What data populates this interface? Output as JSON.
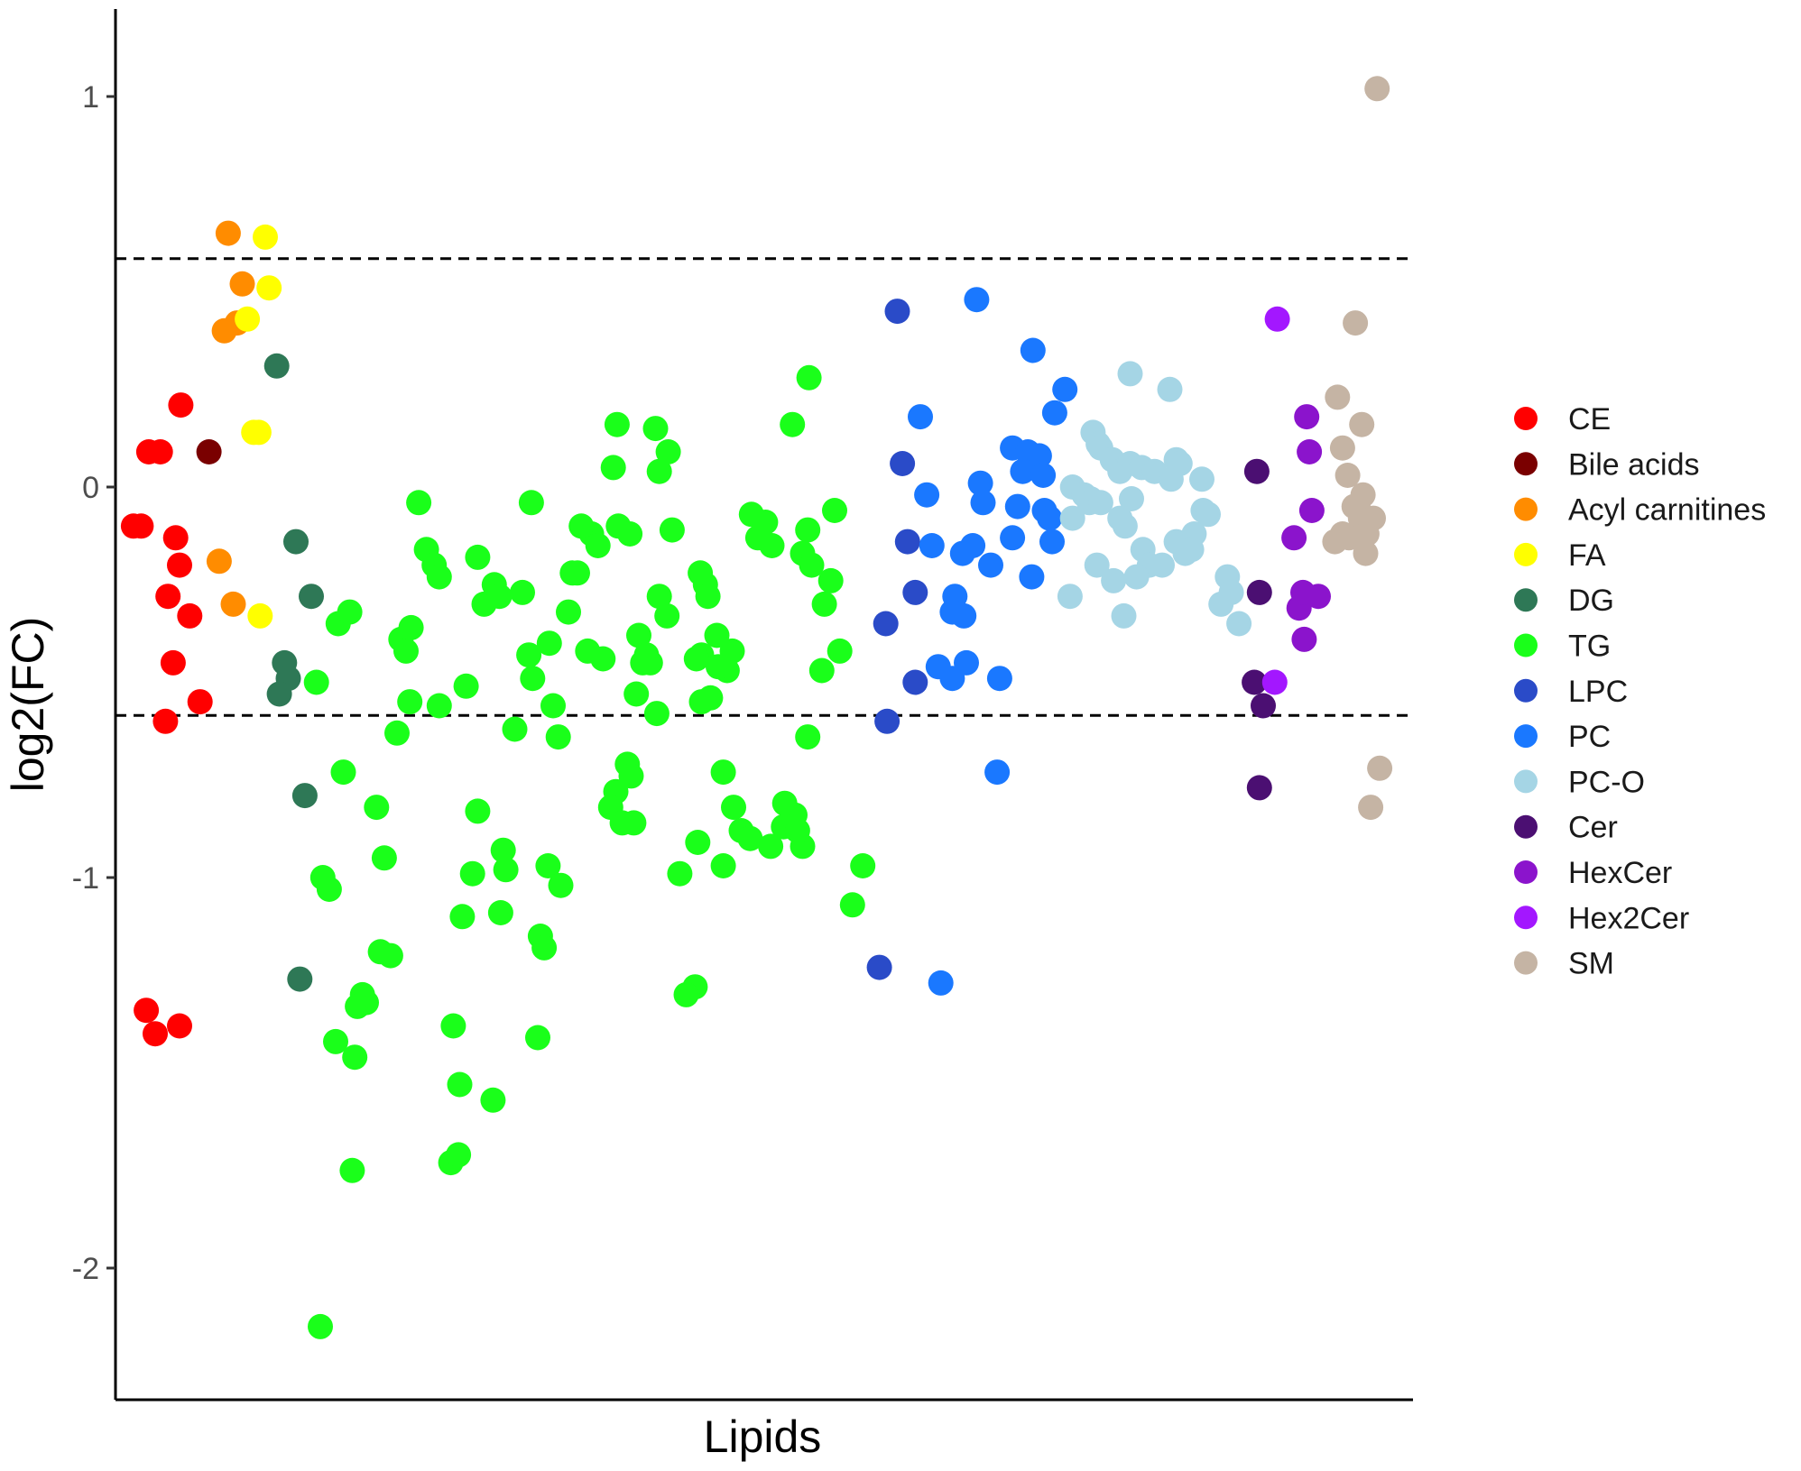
{
  "chart_data": {
    "type": "scatter",
    "title": "",
    "xlabel": "Lipids",
    "ylabel": "log2(FC)",
    "ylim": [
      -2.38,
      1.22
    ],
    "xlim": [
      0,
      100
    ],
    "y_ticks": [
      -2,
      -1,
      0,
      1
    ],
    "y_tick_labels": [
      "-2",
      "-1",
      "0",
      "1"
    ],
    "x_ticks": [],
    "grid": false,
    "legend_position": "right",
    "reference_lines": [
      {
        "y": 0.585,
        "style": "dashed"
      },
      {
        "y": -0.585,
        "style": "dashed"
      }
    ],
    "series": [
      {
        "name": "CE",
        "color": "#ff0000",
        "points": [
          [
            0.7,
            -0.1
          ],
          [
            1.3,
            -0.1
          ],
          [
            1.9,
            0.09
          ],
          [
            2.8,
            0.09
          ],
          [
            4.4,
            0.21
          ],
          [
            4,
            -0.13
          ],
          [
            4.3,
            -0.2
          ],
          [
            3.4,
            -0.28
          ],
          [
            5.1,
            -0.33
          ],
          [
            3.8,
            -0.45
          ],
          [
            5.9,
            -0.55
          ],
          [
            3.2,
            -0.6
          ],
          [
            1.7,
            -1.34
          ],
          [
            2.4,
            -1.4
          ],
          [
            4.3,
            -1.38
          ]
        ]
      },
      {
        "name": "Bile acids",
        "color": "#7a0000",
        "points": [
          [
            6.6,
            0.09
          ]
        ]
      },
      {
        "name": "Acyl carnitines",
        "color": "#ff8c00",
        "points": [
          [
            8.1,
            0.65
          ],
          [
            9.2,
            0.52
          ],
          [
            7.8,
            0.4
          ],
          [
            8.8,
            0.42
          ],
          [
            7.4,
            -0.19
          ],
          [
            8.5,
            -0.3
          ]
        ]
      },
      {
        "name": "FA",
        "color": "#ffff00",
        "points": [
          [
            11,
            0.64
          ],
          [
            11.3,
            0.51
          ],
          [
            9.6,
            0.43
          ],
          [
            10.1,
            0.14
          ],
          [
            10.5,
            0.14
          ],
          [
            10.6,
            -0.33
          ]
        ]
      },
      {
        "name": "DG",
        "color": "#2e7856",
        "points": [
          [
            11.9,
            0.31
          ],
          [
            13.4,
            -0.14
          ],
          [
            14.6,
            -0.28
          ],
          [
            12.5,
            -0.45
          ],
          [
            12.8,
            -0.49
          ],
          [
            12.1,
            -0.53
          ],
          [
            14.1,
            -0.79
          ],
          [
            13.7,
            -1.26
          ]
        ]
      },
      {
        "name": "TG",
        "color": "#1aff1a",
        "points": [
          [
            15,
            -0.5
          ],
          [
            16.7,
            -0.35
          ],
          [
            17.6,
            -0.32
          ],
          [
            17.1,
            -0.73
          ],
          [
            19.7,
            -0.82
          ],
          [
            20.3,
            -0.95
          ],
          [
            15.5,
            -1
          ],
          [
            16,
            -1.03
          ],
          [
            20,
            -1.19
          ],
          [
            20.8,
            -1.2
          ],
          [
            18.6,
            -1.3
          ],
          [
            18.2,
            -1.33
          ],
          [
            18.9,
            -1.32
          ],
          [
            16.5,
            -1.42
          ],
          [
            18,
            -1.46
          ],
          [
            17.8,
            -1.75
          ],
          [
            15.3,
            -2.15
          ],
          [
            23,
            -0.04
          ],
          [
            21.6,
            -0.39
          ],
          [
            22,
            -0.42
          ],
          [
            22.4,
            -0.36
          ],
          [
            23.6,
            -0.16
          ],
          [
            24.2,
            -0.2
          ],
          [
            24.6,
            -0.23
          ],
          [
            22.3,
            -0.55
          ],
          [
            24.6,
            -0.56
          ],
          [
            21.3,
            -0.63
          ],
          [
            27.6,
            -0.18
          ],
          [
            28.1,
            -0.3
          ],
          [
            28.9,
            -0.25
          ],
          [
            29.3,
            -0.28
          ],
          [
            26.7,
            -0.51
          ],
          [
            27.6,
            -0.83
          ],
          [
            29.6,
            -0.93
          ],
          [
            25.7,
            -1.38
          ],
          [
            26.4,
            -1.1
          ],
          [
            27.2,
            -0.99
          ],
          [
            29.8,
            -0.98
          ],
          [
            29.4,
            -1.09
          ],
          [
            26.2,
            -1.53
          ],
          [
            25.5,
            -1.73
          ],
          [
            26.1,
            -1.71
          ],
          [
            28.8,
            -1.57
          ],
          [
            31.8,
            -0.04
          ],
          [
            31.1,
            -0.27
          ],
          [
            31.6,
            -0.43
          ],
          [
            31.9,
            -0.49
          ],
          [
            30.5,
            -0.62
          ],
          [
            33.5,
            -0.56
          ],
          [
            33.9,
            -0.64
          ],
          [
            33.1,
            -0.97
          ],
          [
            34.1,
            -1.02
          ],
          [
            32.5,
            -1.15
          ],
          [
            32.8,
            -1.18
          ],
          [
            32.3,
            -1.41
          ],
          [
            33.2,
            -0.4
          ],
          [
            34.7,
            -0.32
          ],
          [
            35,
            -0.22
          ],
          [
            35.4,
            -0.22
          ],
          [
            36.5,
            -0.12
          ],
          [
            37,
            -0.15
          ],
          [
            35.7,
            -0.1
          ],
          [
            37.4,
            -0.44
          ],
          [
            36.2,
            -0.42
          ],
          [
            38.6,
            -0.1
          ],
          [
            39.5,
            -0.12
          ],
          [
            38.5,
            0.16
          ],
          [
            38.2,
            0.05
          ],
          [
            41.5,
            0.15
          ],
          [
            41.8,
            0.04
          ],
          [
            42.5,
            0.09
          ],
          [
            42.8,
            -0.11
          ],
          [
            40.2,
            -0.38
          ],
          [
            40.8,
            -0.43
          ],
          [
            40.5,
            -0.45
          ],
          [
            41.1,
            -0.45
          ],
          [
            41.8,
            -0.28
          ],
          [
            42.4,
            -0.33
          ],
          [
            40,
            -0.53
          ],
          [
            39.3,
            -0.71
          ],
          [
            39.6,
            -0.74
          ],
          [
            38.4,
            -0.78
          ],
          [
            38,
            -0.82
          ],
          [
            38.9,
            -0.86
          ],
          [
            39.8,
            -0.86
          ],
          [
            41.6,
            -0.58
          ],
          [
            45.1,
            -0.43
          ],
          [
            44.7,
            -0.44
          ],
          [
            45.1,
            -0.55
          ],
          [
            45.8,
            -0.54
          ],
          [
            46.3,
            -0.38
          ],
          [
            47.1,
            -0.47
          ],
          [
            47.5,
            -0.42
          ],
          [
            45,
            -0.22
          ],
          [
            45.4,
            -0.25
          ],
          [
            45.6,
            -0.28
          ],
          [
            46.4,
            -0.46
          ],
          [
            46.8,
            -0.73
          ],
          [
            47.6,
            -0.82
          ],
          [
            48.2,
            -0.88
          ],
          [
            48.9,
            -0.9
          ],
          [
            46.8,
            -0.97
          ],
          [
            44.8,
            -0.91
          ],
          [
            44.6,
            -1.28
          ],
          [
            43.4,
            -0.99
          ],
          [
            43.9,
            -1.3
          ],
          [
            49,
            -0.07
          ],
          [
            49.5,
            -0.13
          ],
          [
            50.1,
            -0.09
          ],
          [
            50.6,
            -0.15
          ],
          [
            52.2,
            0.16
          ],
          [
            53.5,
            0.28
          ],
          [
            55.5,
            -0.06
          ],
          [
            53.4,
            -0.11
          ],
          [
            53,
            -0.17
          ],
          [
            53.7,
            -0.2
          ],
          [
            54.7,
            -0.3
          ],
          [
            55.2,
            -0.24
          ],
          [
            55.9,
            -0.42
          ],
          [
            54.5,
            -0.47
          ],
          [
            53.4,
            -0.64
          ],
          [
            52.4,
            -0.84
          ],
          [
            51.5,
            -0.87
          ],
          [
            53,
            -0.92
          ],
          [
            57.7,
            -0.97
          ],
          [
            56.9,
            -1.07
          ],
          [
            50.5,
            -0.92
          ],
          [
            51.6,
            -0.81
          ],
          [
            52.6,
            -0.88
          ]
        ]
      },
      {
        "name": "LPC",
        "color": "#2a4bc8",
        "points": [
          [
            60.4,
            0.45
          ],
          [
            60.8,
            0.06
          ],
          [
            61.2,
            -0.14
          ],
          [
            61.8,
            -0.27
          ],
          [
            59.5,
            -0.35
          ],
          [
            61.8,
            -0.5
          ],
          [
            59.6,
            -0.6
          ],
          [
            59,
            -1.23
          ]
        ]
      },
      {
        "name": "PC",
        "color": "#1a78ff",
        "points": [
          [
            66.6,
            0.48
          ],
          [
            71,
            0.35
          ],
          [
            73.5,
            0.25
          ],
          [
            72.7,
            0.19
          ],
          [
            62.2,
            0.18
          ],
          [
            69.4,
            0.1
          ],
          [
            70.6,
            0.09
          ],
          [
            71.5,
            0.08
          ],
          [
            70.2,
            0.04
          ],
          [
            71.8,
            0.03
          ],
          [
            66.9,
            0.01
          ],
          [
            67.1,
            -0.04
          ],
          [
            62.7,
            -0.02
          ],
          [
            63.1,
            -0.15
          ],
          [
            69.8,
            -0.05
          ],
          [
            71.9,
            -0.06
          ],
          [
            72.3,
            -0.08
          ],
          [
            72.5,
            -0.14
          ],
          [
            66.3,
            -0.15
          ],
          [
            65.5,
            -0.17
          ],
          [
            67.7,
            -0.2
          ],
          [
            69.4,
            -0.13
          ],
          [
            70.9,
            -0.23
          ],
          [
            64.9,
            -0.28
          ],
          [
            64.7,
            -0.32
          ],
          [
            65.6,
            -0.33
          ],
          [
            63.6,
            -0.46
          ],
          [
            64.7,
            -0.49
          ],
          [
            65.8,
            -0.45
          ],
          [
            68.4,
            -0.49
          ],
          [
            68.2,
            -0.73
          ],
          [
            63.8,
            -1.27
          ]
        ]
      },
      {
        "name": "PC-O",
        "color": "#a5d5e5",
        "points": [
          [
            78.6,
            0.29
          ],
          [
            81.7,
            0.25
          ],
          [
            75.7,
            0.14
          ],
          [
            76.1,
            0.11
          ],
          [
            76.3,
            0.1
          ],
          [
            77.2,
            0.07
          ],
          [
            77.8,
            0.04
          ],
          [
            78.6,
            0.06
          ],
          [
            79.5,
            0.05
          ],
          [
            80.5,
            0.04
          ],
          [
            82.2,
            0.07
          ],
          [
            82.5,
            0.06
          ],
          [
            81.8,
            0.02
          ],
          [
            84.2,
            0.02
          ],
          [
            74.1,
            0
          ],
          [
            75,
            -0.02
          ],
          [
            75.5,
            -0.03
          ],
          [
            75.4,
            -0.04
          ],
          [
            76.3,
            -0.04
          ],
          [
            78.7,
            -0.03
          ],
          [
            74.1,
            -0.08
          ],
          [
            77.8,
            -0.08
          ],
          [
            78.2,
            -0.1
          ],
          [
            79.6,
            -0.16
          ],
          [
            80.1,
            -0.2
          ],
          [
            82.2,
            -0.14
          ],
          [
            83.6,
            -0.12
          ],
          [
            84.3,
            -0.06
          ],
          [
            84.7,
            -0.07
          ],
          [
            76,
            -0.2
          ],
          [
            77.3,
            -0.24
          ],
          [
            79.1,
            -0.23
          ],
          [
            81.1,
            -0.2
          ],
          [
            82.9,
            -0.17
          ],
          [
            83.4,
            -0.16
          ],
          [
            73.9,
            -0.28
          ],
          [
            78.1,
            -0.33
          ],
          [
            86.2,
            -0.23
          ],
          [
            86.5,
            -0.27
          ],
          [
            85.7,
            -0.3
          ],
          [
            87.1,
            -0.35
          ]
        ]
      },
      {
        "name": "Cer",
        "color": "#4b0f72",
        "points": [
          [
            88.5,
            0.04
          ],
          [
            88.7,
            -0.27
          ],
          [
            88.3,
            -0.5
          ],
          [
            89,
            -0.56
          ],
          [
            88.7,
            -0.77
          ]
        ]
      },
      {
        "name": "HexCer",
        "color": "#8b14cc",
        "points": [
          [
            92.4,
            0.18
          ],
          [
            92.6,
            0.09
          ],
          [
            92.8,
            -0.06
          ],
          [
            91.4,
            -0.13
          ],
          [
            91.8,
            -0.31
          ],
          [
            92.1,
            -0.27
          ],
          [
            93.3,
            -0.28
          ],
          [
            92.2,
            -0.39
          ]
        ]
      },
      {
        "name": "Hex2Cer",
        "color": "#a317ff",
        "points": [
          [
            90.1,
            0.43
          ],
          [
            89.9,
            -0.5
          ]
        ]
      },
      {
        "name": "SM",
        "color": "#c5b4a4",
        "points": [
          [
            97.9,
            1.02
          ],
          [
            96.2,
            0.42
          ],
          [
            94.8,
            0.23
          ],
          [
            95.2,
            0.1
          ],
          [
            95.6,
            0.03
          ],
          [
            96.7,
            0.16
          ],
          [
            96.8,
            -0.02
          ],
          [
            96.4,
            -0.05
          ],
          [
            96.1,
            -0.05
          ],
          [
            96.6,
            -0.08
          ],
          [
            95.2,
            -0.12
          ],
          [
            95.7,
            -0.13
          ],
          [
            96.5,
            -0.13
          ],
          [
            97.6,
            -0.08
          ],
          [
            97.1,
            -0.12
          ],
          [
            94.6,
            -0.14
          ],
          [
            97,
            -0.17
          ],
          [
            98.1,
            -0.72
          ],
          [
            97.4,
            -0.82
          ]
        ]
      }
    ]
  }
}
